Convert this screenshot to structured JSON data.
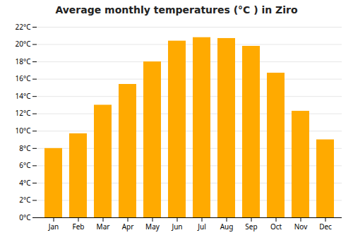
{
  "chart_data": {
    "type": "bar",
    "title": "Average monthly temperatures (°C ) in Ziro",
    "categories": [
      "Jan",
      "Feb",
      "Mar",
      "Apr",
      "May",
      "Jun",
      "Jul",
      "Aug",
      "Sep",
      "Oct",
      "Nov",
      "Dec"
    ],
    "values": [
      8.0,
      9.7,
      13.0,
      15.4,
      18.0,
      20.4,
      20.8,
      20.7,
      19.8,
      16.7,
      12.3,
      9.0
    ],
    "color": "#FFAA00",
    "ylim": [
      0,
      22
    ],
    "yticks": [
      {
        "value": 0,
        "label": "0°C"
      },
      {
        "value": 2,
        "label": "2°C"
      },
      {
        "value": 4,
        "label": "4°C"
      },
      {
        "value": 6,
        "label": "6°C"
      },
      {
        "value": 8,
        "label": "8°C"
      },
      {
        "value": 10,
        "label": "10°C"
      },
      {
        "value": 12,
        "label": "12°C"
      },
      {
        "value": 14,
        "label": "14°C"
      },
      {
        "value": 16,
        "label": "16°C"
      },
      {
        "value": 18,
        "label": "18°C"
      },
      {
        "value": 20,
        "label": "20°C"
      },
      {
        "value": 22,
        "label": "22°C"
      }
    ],
    "grid": true
  }
}
